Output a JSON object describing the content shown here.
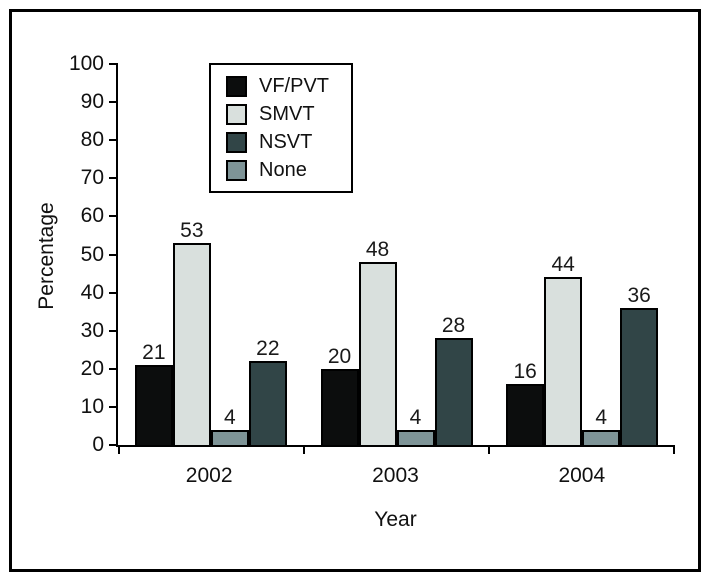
{
  "figure": {
    "background_color": "#ffffff",
    "border_color": "#000000"
  },
  "chart_data": {
    "type": "bar",
    "title": "",
    "categories": [
      "2002",
      "2003",
      "2004"
    ],
    "series": [
      {
        "name": "VF/PVT",
        "values": [
          21,
          20,
          16
        ],
        "color": "#0c0d0d"
      },
      {
        "name": "SMVT",
        "values": [
          53,
          48,
          44
        ],
        "color": "#d9e0dd"
      },
      {
        "name": "None",
        "values": [
          4,
          4,
          4
        ],
        "color": "#7e9497"
      },
      {
        "name": "NSVT",
        "values": [
          22,
          28,
          36
        ],
        "color": "#314547"
      }
    ],
    "legend": {
      "entries": [
        "VF/PVT",
        "SMVT",
        "NSVT",
        "None"
      ],
      "position": "top-left-inside",
      "border": true
    },
    "xlabel": "Year",
    "ylabel": "Percentage",
    "ylim": [
      0,
      100
    ],
    "ytick_step": 10,
    "grid": false,
    "bar_value_labels": true
  }
}
